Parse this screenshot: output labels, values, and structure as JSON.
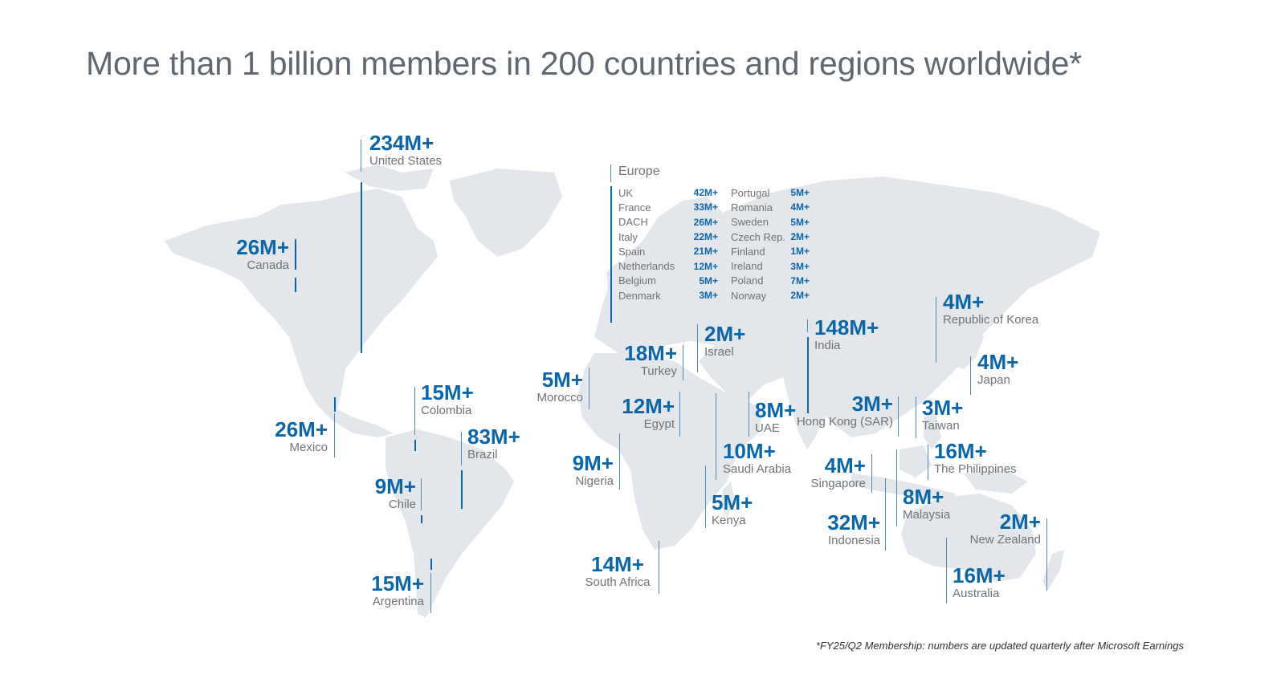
{
  "title": "More than 1 billion members in 200 countries and regions worldwide*",
  "footnote": "*FY25/Q2 Membership: numbers are updated quarterly after Microsoft Earnings",
  "colors": {
    "accent": "#0b66a8",
    "land": "#e3e7ec",
    "label": "#6d7378",
    "title": "#5f6770"
  },
  "markers": {
    "united_states": {
      "value": "234M+",
      "name": "United States"
    },
    "canada": {
      "value": "26M+",
      "name": "Canada"
    },
    "mexico": {
      "value": "26M+",
      "name": "Mexico"
    },
    "colombia": {
      "value": "15M+",
      "name": "Colombia"
    },
    "brazil": {
      "value": "83M+",
      "name": "Brazil"
    },
    "chile": {
      "value": "9M+",
      "name": "Chile"
    },
    "argentina": {
      "value": "15M+",
      "name": "Argentina"
    },
    "morocco": {
      "value": "5M+",
      "name": "Morocco"
    },
    "turkey": {
      "value": "18M+",
      "name": "Turkey"
    },
    "israel": {
      "value": "2M+",
      "name": "Israel"
    },
    "egypt": {
      "value": "12M+",
      "name": "Egypt"
    },
    "nigeria": {
      "value": "9M+",
      "name": "Nigeria"
    },
    "south_africa": {
      "value": "14M+",
      "name": "South Africa"
    },
    "kenya": {
      "value": "5M+",
      "name": "Kenya"
    },
    "saudi_arabia": {
      "value": "10M+",
      "name": "Saudi Arabia"
    },
    "uae": {
      "value": "8M+",
      "name": "UAE"
    },
    "india": {
      "value": "148M+",
      "name": "India"
    },
    "hong_kong": {
      "value": "3M+",
      "name": "Hong Kong (SAR)"
    },
    "taiwan": {
      "value": "3M+",
      "name": "Taiwan"
    },
    "korea": {
      "value": "4M+",
      "name": "Republic of Korea"
    },
    "japan": {
      "value": "4M+",
      "name": "Japan"
    },
    "philippines": {
      "value": "16M+",
      "name": "The Philippines"
    },
    "singapore": {
      "value": "4M+",
      "name": "Singapore"
    },
    "malaysia": {
      "value": "8M+",
      "name": "Malaysia"
    },
    "indonesia": {
      "value": "32M+",
      "name": "Indonesia"
    },
    "new_zealand": {
      "value": "2M+",
      "name": "New Zealand"
    },
    "australia": {
      "value": "16M+",
      "name": "Australia"
    }
  },
  "europe": {
    "title": "Europe",
    "col1": [
      {
        "name": "UK",
        "value": "42M+"
      },
      {
        "name": "France",
        "value": "33M+"
      },
      {
        "name": "DACH",
        "value": "26M+"
      },
      {
        "name": "Italy",
        "value": "22M+"
      },
      {
        "name": "Spain",
        "value": "21M+"
      },
      {
        "name": "Netherlands",
        "value": "12M+"
      },
      {
        "name": "Belgium",
        "value": "5M+"
      },
      {
        "name": "Denmark",
        "value": "3M+"
      }
    ],
    "col2": [
      {
        "name": "Portugal",
        "value": "5M+"
      },
      {
        "name": "Romania",
        "value": "4M+"
      },
      {
        "name": "Sweden",
        "value": "5M+"
      },
      {
        "name": "Czech Rep.",
        "value": "2M+"
      },
      {
        "name": "Finland",
        "value": "1M+"
      },
      {
        "name": "Ireland",
        "value": "3M+"
      },
      {
        "name": "Poland",
        "value": "7M+"
      },
      {
        "name": "Norway",
        "value": "2M+"
      }
    ]
  }
}
